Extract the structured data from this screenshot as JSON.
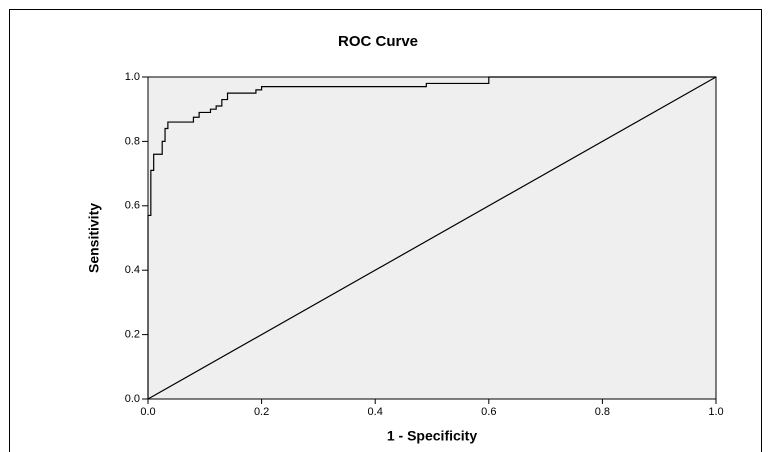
{
  "chart_data": {
    "type": "line",
    "title": "ROC Curve",
    "x_label": "1 - Specificity",
    "y_label": "Sensitivity",
    "xlim": [
      0,
      1
    ],
    "ylim": [
      0,
      1
    ],
    "xticks": [
      {
        "value": 0,
        "label": "0.0"
      },
      0.2,
      0.4,
      0.6,
      0.8,
      {
        "value": 1,
        "label": "1.0"
      }
    ],
    "yticks": [
      {
        "value": 0,
        "label": "0.0"
      },
      0.2,
      0.4,
      0.6,
      0.8,
      {
        "value": 1,
        "label": "1.0"
      }
    ],
    "series": [
      {
        "color": "#000000",
        "x": [
          0,
          0,
          0.005,
          0.005,
          0.01,
          0.01,
          0.025,
          0.025,
          0.03,
          0.03,
          0.035,
          0.035,
          0.08,
          0.08,
          0.09,
          0.09,
          0.11,
          0.11,
          0.12,
          0.12,
          0.13,
          0.13,
          0.14,
          0.14,
          0.19,
          0.19,
          0.2,
          0.2,
          0.49,
          0.49,
          0.6,
          0.6,
          1
        ],
        "values": [
          0,
          0.57,
          0.57,
          0.71,
          0.71,
          0.76,
          0.76,
          0.8,
          0.8,
          0.84,
          0.84,
          0.86,
          0.86,
          0.875,
          0.875,
          0.89,
          0.89,
          0.9,
          0.9,
          0.91,
          0.91,
          0.93,
          0.93,
          0.95,
          0.95,
          0.96,
          0.96,
          0.97,
          0.97,
          0.98,
          0.98,
          1,
          1
        ]
      },
      {
        "color": "#000000",
        "x": [
          0,
          1
        ],
        "values": [
          0,
          1
        ]
      }
    ]
  }
}
